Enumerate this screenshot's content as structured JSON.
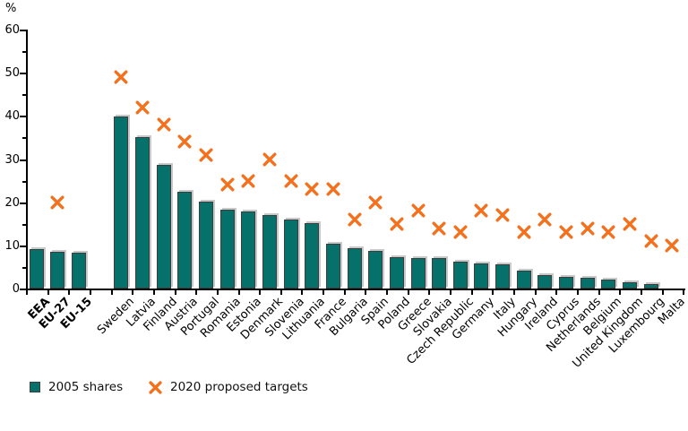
{
  "figure": {
    "unit_label": "%",
    "colors": {
      "bar_fill": "#06706a",
      "bar_border": "#3d3d3d",
      "target_marker": "#f4701d",
      "axis": "#000000"
    },
    "legend": [
      {
        "label": "2005 shares",
        "marker": "square",
        "color": "#06706a"
      },
      {
        "label": "2020 proposed targets",
        "marker": "x",
        "color": "#f4701d"
      }
    ]
  },
  "chart_data": {
    "type": "bar",
    "title": "",
    "xlabel": "",
    "ylabel": "%",
    "ylim": [
      0,
      60
    ],
    "y_major_ticks": [
      0,
      10,
      20,
      30,
      40,
      50,
      60
    ],
    "y_minor_ticks": [
      5,
      15,
      25,
      35,
      45,
      55
    ],
    "grid": false,
    "legend_position": "bottom",
    "categories": [
      "EEA",
      "EU-27",
      "EU-15",
      "Sweden",
      "Latvia",
      "Finland",
      "Austria",
      "Portugal",
      "Romania",
      "Estonia",
      "Denmark",
      "Slovenia",
      "Lithuania",
      "France",
      "Bulgaria",
      "Spain",
      "Poland",
      "Greece",
      "Slovakia",
      "Czech Republic",
      "Germany",
      "Italy",
      "Hungary",
      "Ireland",
      "Cyprus",
      "Netherlands",
      "Belgium",
      "United Kingdom",
      "Luxembourg",
      "Malta"
    ],
    "emphasized_categories": [
      "EEA",
      "EU-27",
      "EU-15"
    ],
    "gap_after_category": "EU-15",
    "series": [
      {
        "name": "2005 shares",
        "type": "bar",
        "color": "#06706a",
        "values": [
          9.2,
          8.5,
          8.3,
          39.8,
          35.0,
          28.6,
          22.5,
          20.2,
          18.3,
          17.9,
          17.1,
          16.0,
          15.1,
          10.4,
          9.3,
          8.7,
          7.3,
          7.1,
          7.0,
          6.2,
          5.8,
          5.6,
          4.2,
          3.1,
          2.8,
          2.5,
          2.1,
          1.5,
          1.0,
          0.0
        ]
      },
      {
        "name": "2020 proposed targets",
        "type": "scatter-x",
        "color": "#f4701d",
        "values": [
          null,
          20,
          null,
          49,
          42,
          38,
          34,
          31,
          24,
          25,
          30,
          25,
          23,
          23,
          16,
          20,
          15,
          18,
          14,
          13,
          18,
          17,
          13,
          16,
          13,
          14,
          13,
          15,
          11,
          10
        ]
      }
    ]
  }
}
